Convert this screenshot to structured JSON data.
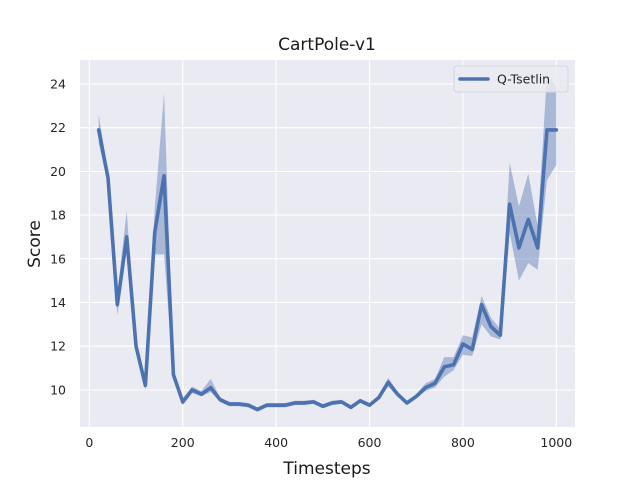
{
  "chart_data": {
    "type": "line",
    "title": "CartPole-v1",
    "xlabel": "Timesteps",
    "ylabel": "Score",
    "xlim": [
      -20,
      1040
    ],
    "ylim": [
      8.3,
      25.1
    ],
    "xticks": [
      0,
      200,
      400,
      600,
      800,
      1000
    ],
    "yticks": [
      10,
      12,
      14,
      16,
      18,
      20,
      22,
      24
    ],
    "grid": true,
    "legend_position": "top-right",
    "colors": {
      "line": "#4c72b0",
      "band": "#4c72b0",
      "background": "#eaeaf2",
      "grid": "#ffffff"
    },
    "series": [
      {
        "name": "Q-Tsetlin",
        "x": [
          20,
          40,
          60,
          80,
          100,
          120,
          140,
          160,
          180,
          200,
          220,
          240,
          260,
          280,
          300,
          320,
          340,
          360,
          380,
          400,
          420,
          440,
          460,
          480,
          500,
          520,
          540,
          560,
          580,
          600,
          620,
          640,
          660,
          680,
          700,
          720,
          740,
          760,
          780,
          800,
          820,
          840,
          860,
          880,
          900,
          920,
          940,
          960,
          980,
          1000
        ],
        "y": [
          21.9,
          19.7,
          13.9,
          17.0,
          12.0,
          10.2,
          17.2,
          19.8,
          10.7,
          9.45,
          10.0,
          9.8,
          10.1,
          9.55,
          9.35,
          9.35,
          9.3,
          9.1,
          9.3,
          9.3,
          9.3,
          9.4,
          9.4,
          9.45,
          9.25,
          9.4,
          9.45,
          9.2,
          9.5,
          9.3,
          9.65,
          10.35,
          9.8,
          9.4,
          9.7,
          10.1,
          10.3,
          11.05,
          11.15,
          12.1,
          11.85,
          13.9,
          12.9,
          12.5,
          18.5,
          16.5,
          17.8,
          16.5,
          21.9,
          21.9
        ],
        "lower": [
          21.3,
          19.4,
          13.4,
          16.6,
          11.8,
          10.0,
          16.2,
          16.2,
          10.5,
          9.3,
          9.85,
          9.7,
          9.9,
          9.45,
          9.25,
          9.25,
          9.2,
          9.0,
          9.2,
          9.2,
          9.2,
          9.3,
          9.3,
          9.35,
          9.15,
          9.3,
          9.35,
          9.1,
          9.4,
          9.2,
          9.55,
          10.15,
          9.7,
          9.3,
          9.6,
          9.95,
          10.1,
          10.6,
          10.9,
          11.6,
          11.55,
          13.0,
          12.45,
          12.3,
          17.2,
          15.0,
          15.8,
          15.5,
          19.6,
          20.3
        ],
        "upper": [
          22.6,
          20.0,
          14.4,
          18.2,
          12.2,
          10.5,
          18.3,
          23.6,
          10.9,
          9.6,
          10.15,
          9.95,
          10.5,
          9.65,
          9.45,
          9.45,
          9.4,
          9.2,
          9.4,
          9.4,
          9.4,
          9.5,
          9.5,
          9.55,
          9.35,
          9.5,
          9.55,
          9.3,
          9.6,
          9.4,
          9.75,
          10.55,
          9.9,
          9.5,
          9.8,
          10.3,
          10.5,
          11.5,
          11.5,
          12.5,
          12.4,
          14.3,
          13.3,
          12.8,
          20.4,
          18.4,
          19.9,
          17.5,
          24.4,
          23.9
        ]
      }
    ]
  }
}
